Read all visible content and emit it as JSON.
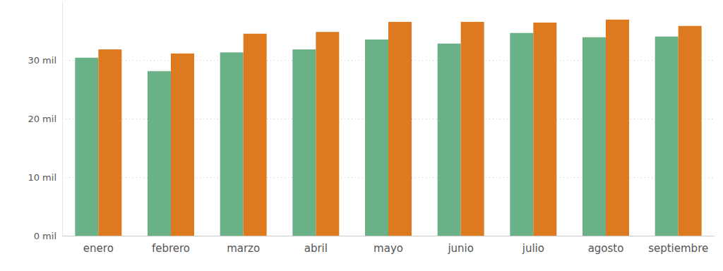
{
  "chart_data": {
    "type": "bar",
    "categories": [
      "enero",
      "febrero",
      "marzo",
      "abril",
      "mayo",
      "junio",
      "julio",
      "agosto",
      "septiembre"
    ],
    "series": [
      {
        "color": "#6ab187",
        "values": [
          30400,
          28100,
          31300,
          31800,
          33500,
          32800,
          34600,
          33900,
          34000
        ]
      },
      {
        "color": "#dd7a20",
        "values": [
          31800,
          31100,
          34500,
          34800,
          36500,
          36500,
          36400,
          36900,
          35800
        ]
      }
    ],
    "ylim": [
      0,
      40000
    ],
    "yticks": [
      {
        "value": 0,
        "label": "0 mil"
      },
      {
        "value": 10000,
        "label": "10 mil"
      },
      {
        "value": 20000,
        "label": "20 mil"
      },
      {
        "value": 30000,
        "label": "30 mil"
      }
    ],
    "grid": true
  }
}
